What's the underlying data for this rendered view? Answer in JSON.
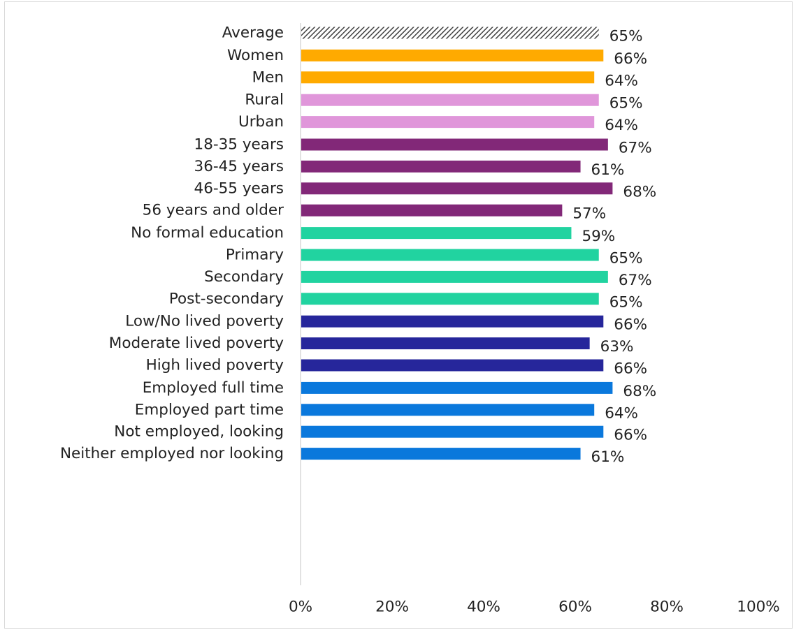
{
  "chart_data": {
    "type": "bar",
    "orientation": "horizontal",
    "title": "",
    "xlabel": "",
    "ylabel": "",
    "xlim": [
      0,
      100
    ],
    "x_ticks": [
      "0%",
      "20%",
      "40%",
      "60%",
      "80%",
      "100%"
    ],
    "grid": false,
    "legend": "none",
    "value_suffix": "%",
    "groups": [
      {
        "items": [
          {
            "label": "Average",
            "value": 65
          }
        ],
        "color": "#404040",
        "pattern": "diagonal-hatch"
      },
      {
        "items": [
          {
            "label": "Women",
            "value": 66
          },
          {
            "label": "Men",
            "value": 64
          }
        ],
        "color": "#FFAA00"
      },
      {
        "items": [
          {
            "label": "Rural",
            "value": 65
          },
          {
            "label": "Urban",
            "value": 64
          }
        ],
        "color": "#E096DA"
      },
      {
        "items": [
          {
            "label": "18-35 years",
            "value": 67
          },
          {
            "label": "36-45 years",
            "value": 61
          },
          {
            "label": "46-55 years",
            "value": 68
          },
          {
            "label": "56 years and older",
            "value": 57
          }
        ],
        "color": "#822878"
      },
      {
        "items": [
          {
            "label": "No formal education",
            "value": 59
          },
          {
            "label": "Primary",
            "value": 65
          },
          {
            "label": "Secondary",
            "value": 67
          },
          {
            "label": "Post-secondary",
            "value": 65
          }
        ],
        "color": "#21D3A0"
      },
      {
        "items": [
          {
            "label": "Low/No lived poverty",
            "value": 66
          },
          {
            "label": "Moderate lived poverty",
            "value": 63
          },
          {
            "label": "High lived poverty",
            "value": 66
          }
        ],
        "color": "#26269B"
      },
      {
        "items": [
          {
            "label": "Employed full time",
            "value": 68
          },
          {
            "label": "Employed part time",
            "value": 64
          },
          {
            "label": "Not employed, looking",
            "value": 66
          },
          {
            "label": "Neither employed nor looking",
            "value": 61
          }
        ],
        "color": "#0A78DC"
      }
    ]
  }
}
